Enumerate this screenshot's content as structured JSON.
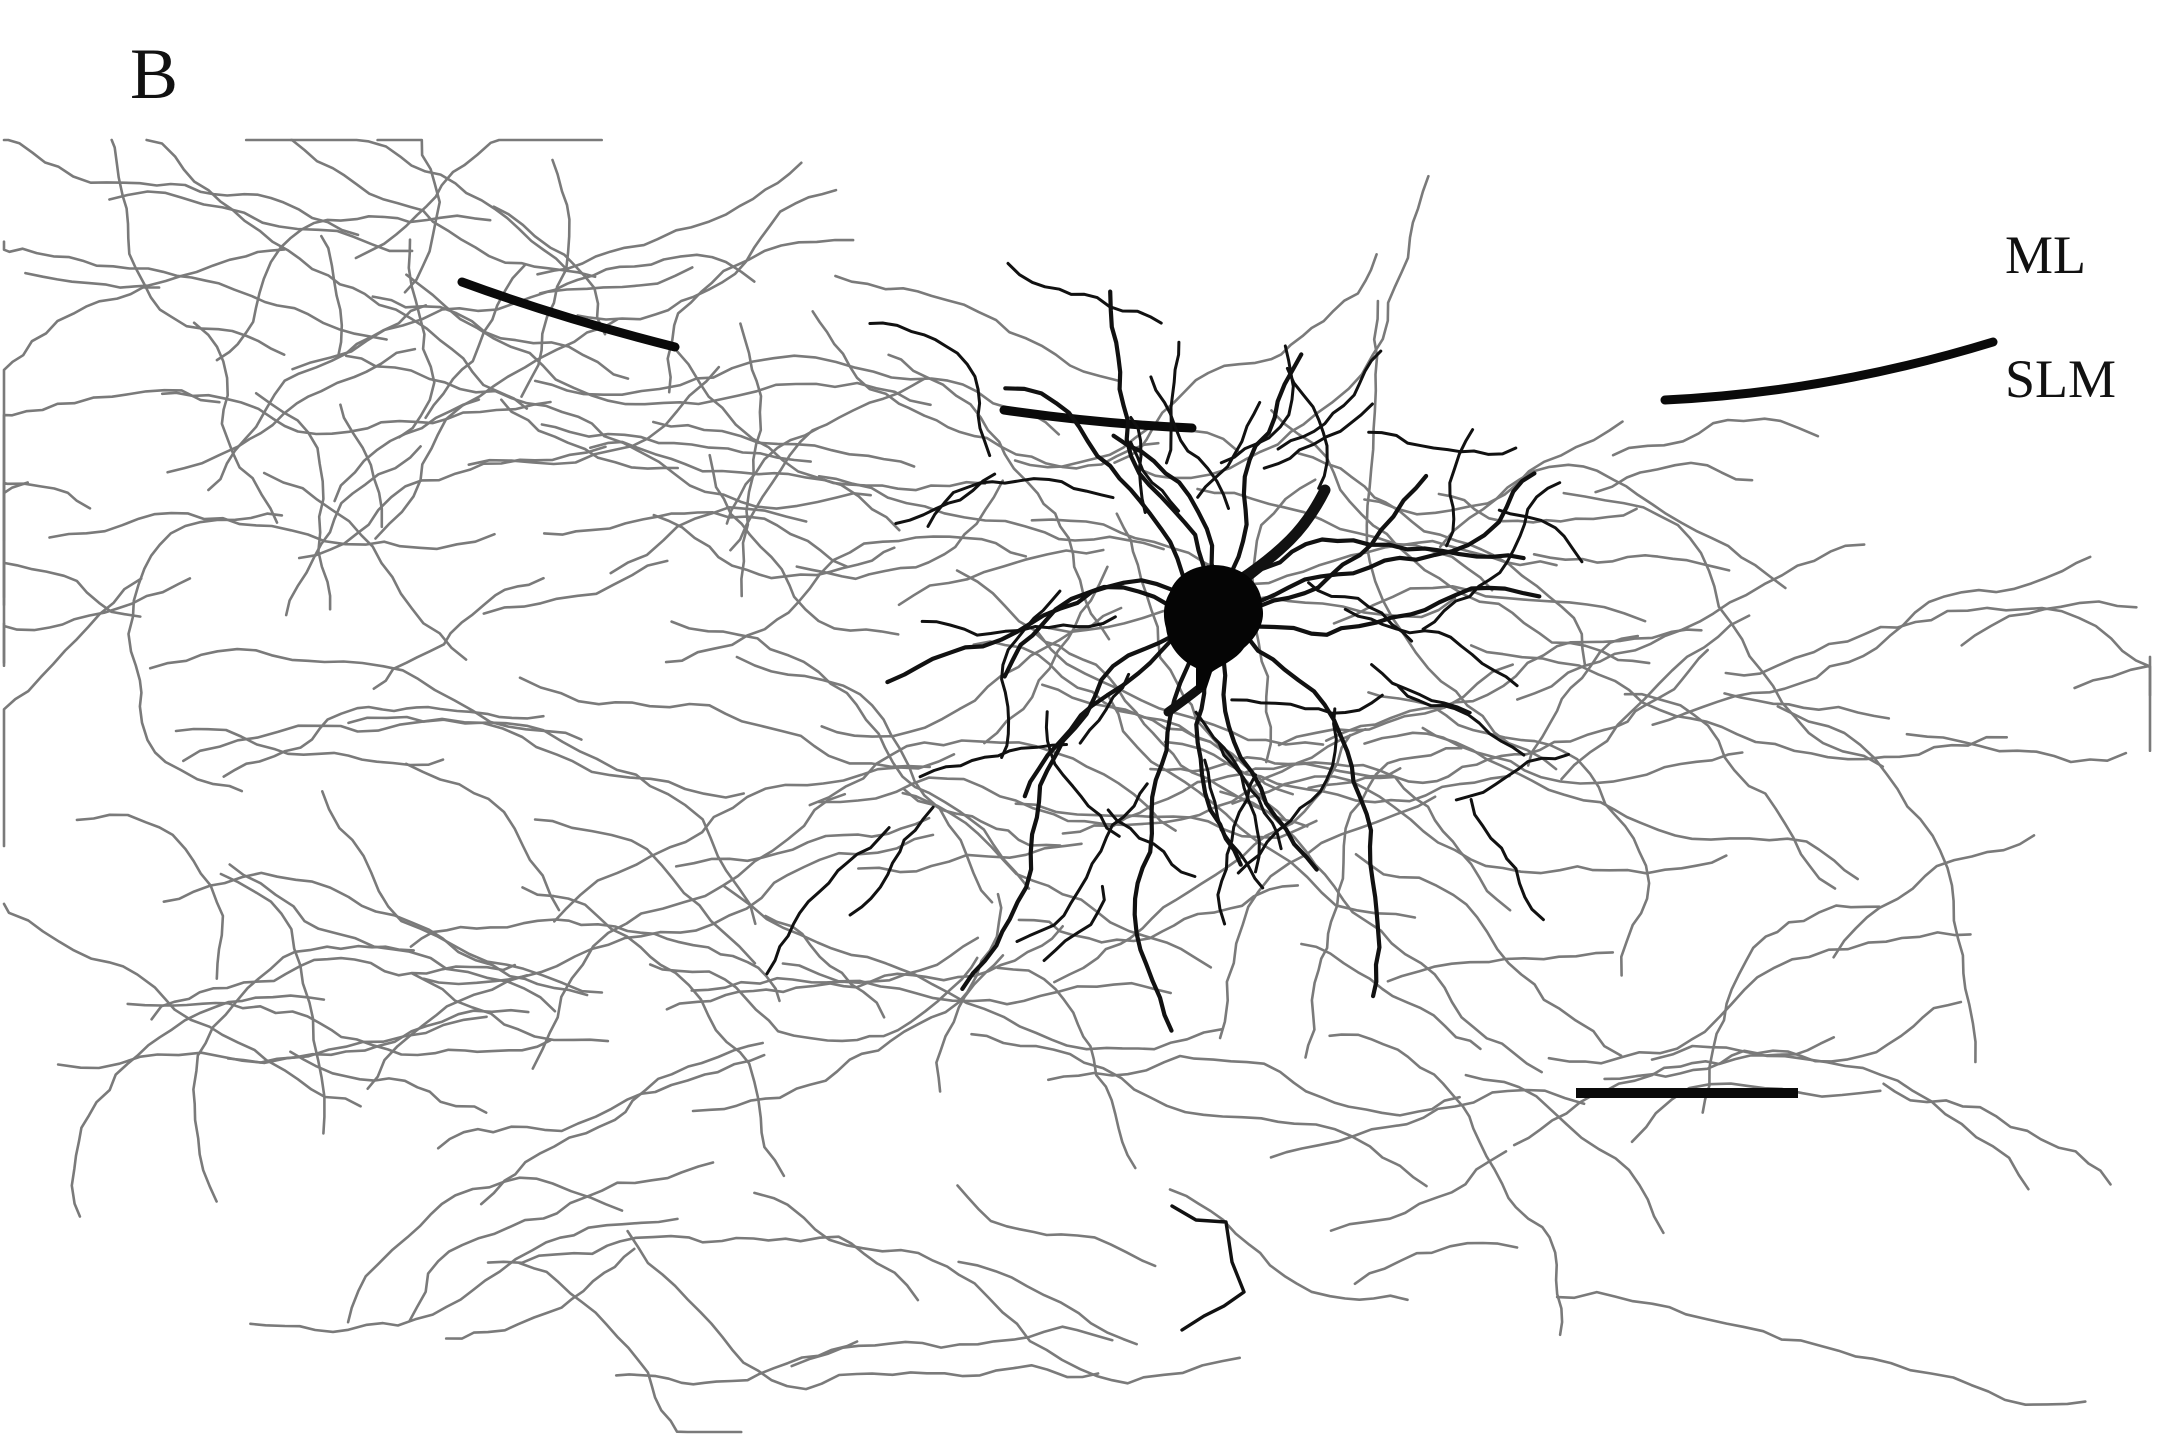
{
  "figure": {
    "panel_label": "B",
    "layer_labels": {
      "upper": "ML",
      "lower": "SLM"
    },
    "colors": {
      "background": "#ffffff",
      "axon": "#7a7a7a",
      "dendrite": "#111111",
      "soma": "#050505",
      "boundary": "#0a0a0a",
      "scale_bar": "#0a0a0a"
    }
  }
}
